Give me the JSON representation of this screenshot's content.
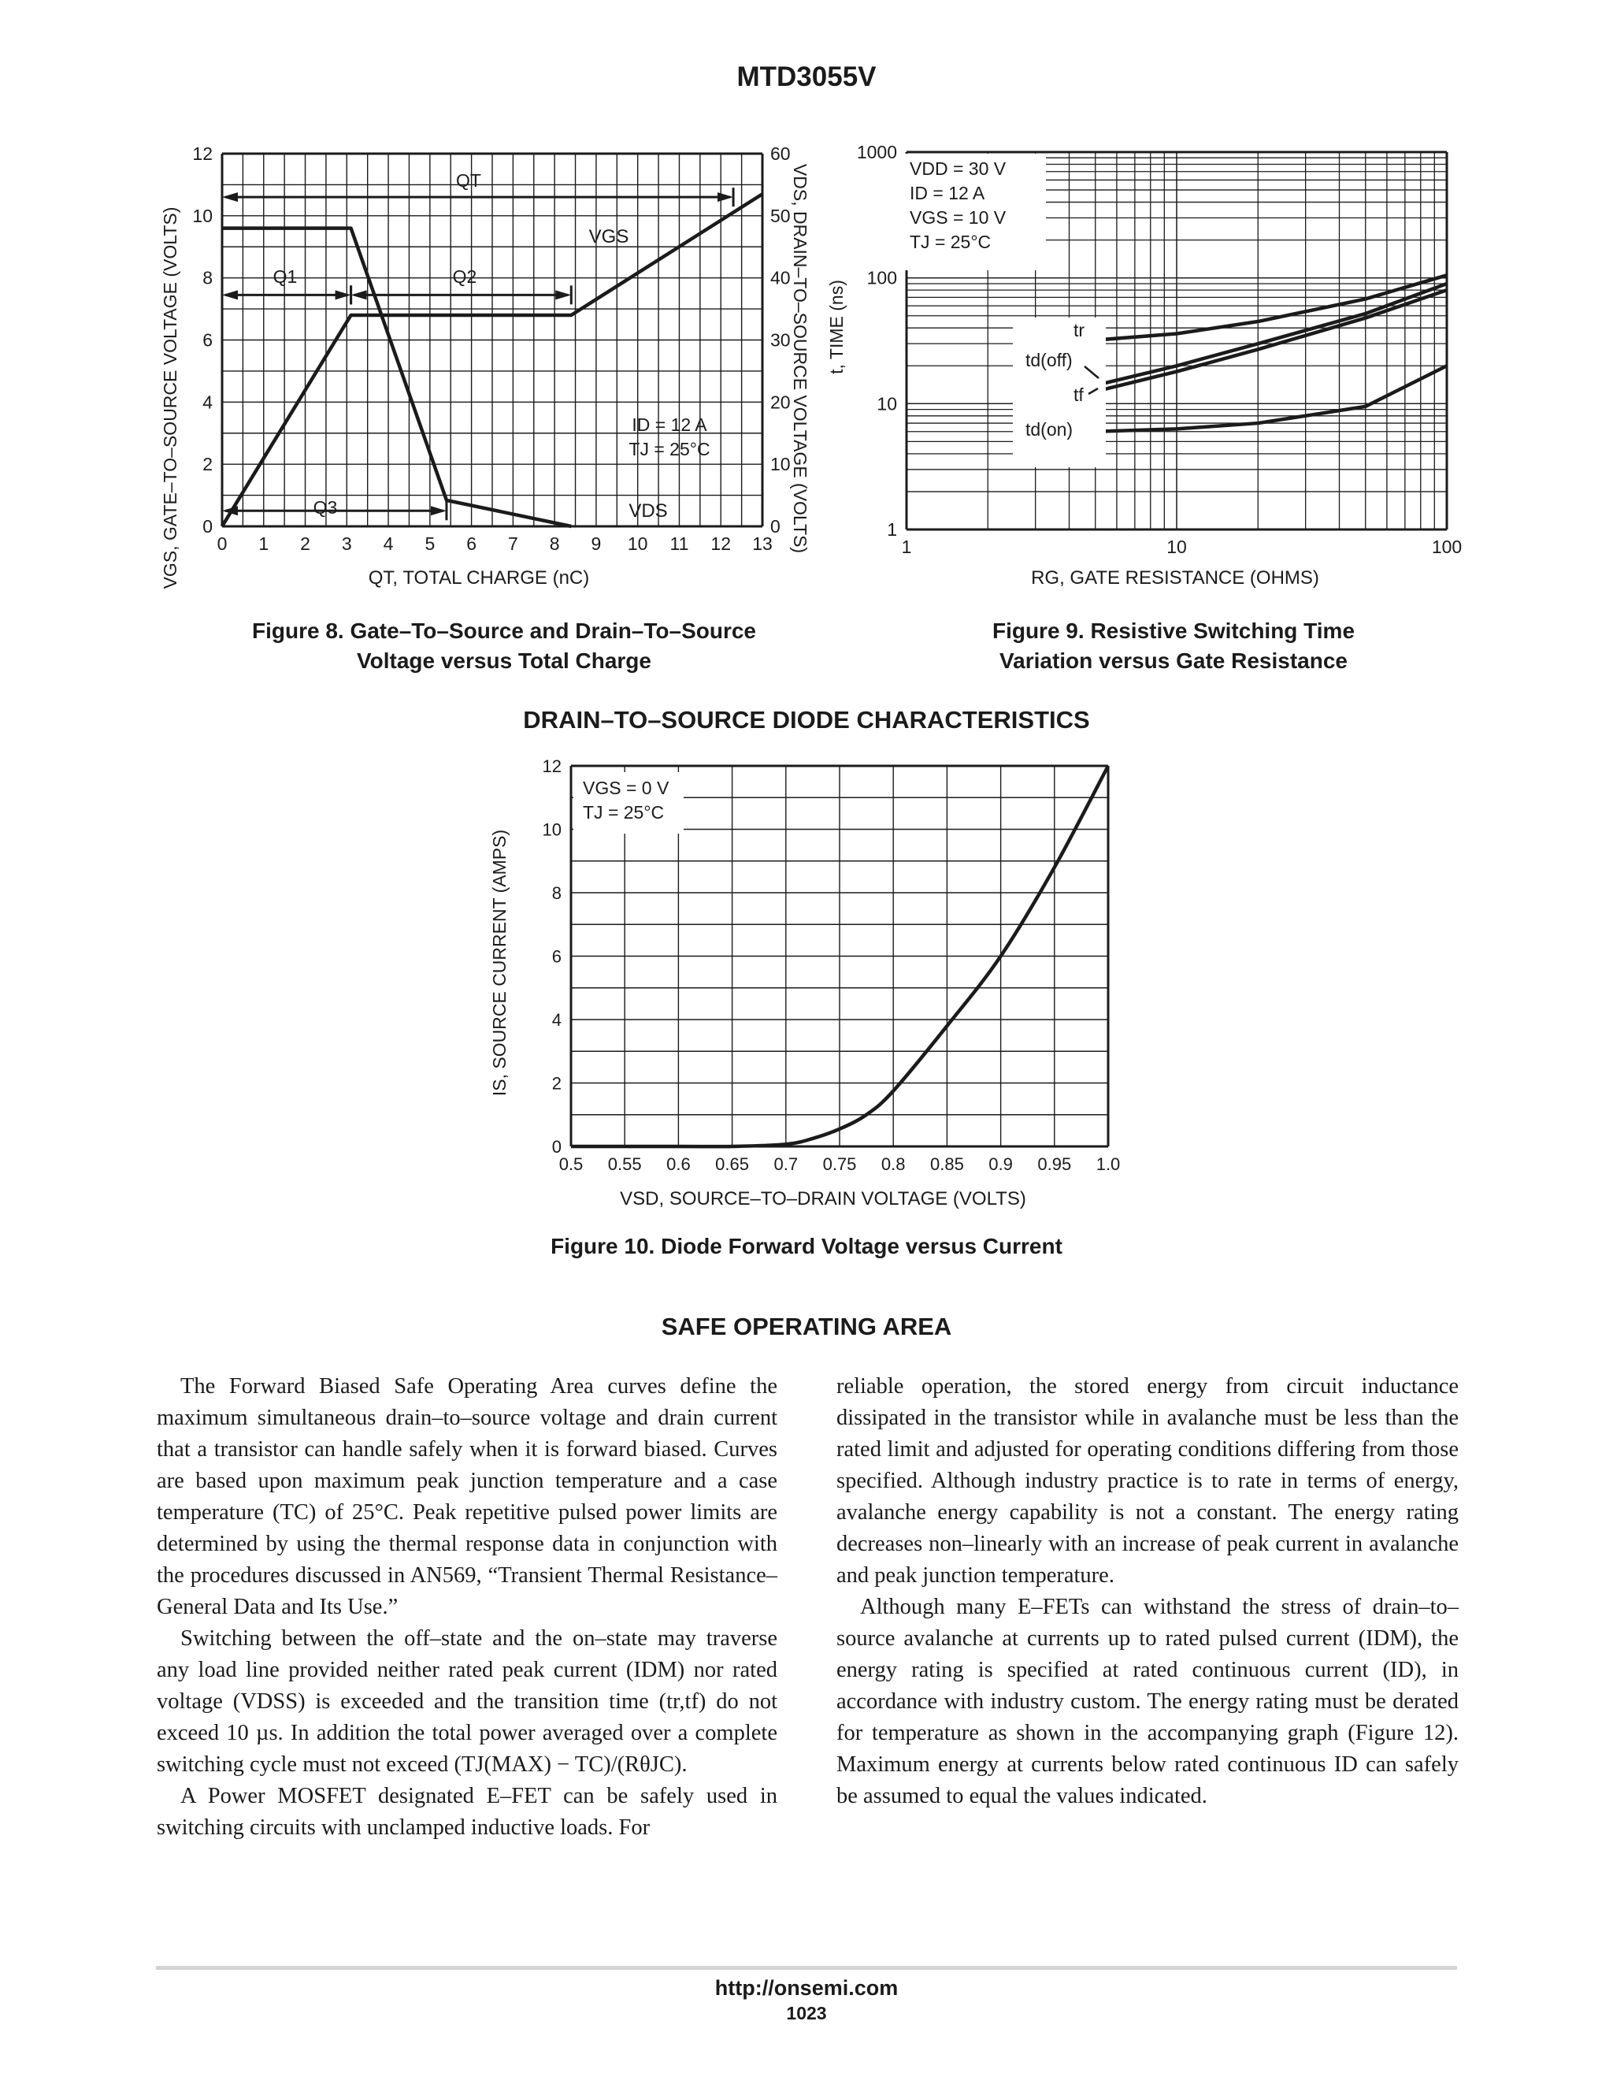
{
  "header": {
    "title": "MTD3055V"
  },
  "fig8": {
    "caption_line1": "Figure 8. Gate–To–Source and Drain–To–Source",
    "caption_line2": "Voltage versus Total Charge",
    "ylabel_left": "VGS, GATE–TO–SOURCE VOLTAGE (VOLTS)",
    "ylabel_right": "VDS, DRAIN–TO–SOURCE VOLTAGE (VOLTS)",
    "xlabel": "QT, TOTAL CHARGE (nC)",
    "x_ticks": [
      "0",
      "1",
      "2",
      "3",
      "4",
      "5",
      "6",
      "7",
      "8",
      "9",
      "10",
      "11",
      "12",
      "13"
    ],
    "yl_ticks": [
      "0",
      "2",
      "4",
      "6",
      "8",
      "10",
      "12"
    ],
    "yr_ticks": [
      "0",
      "10",
      "20",
      "30",
      "40",
      "50",
      "60"
    ],
    "labels": {
      "qt": "QT",
      "q1": "Q1",
      "q2": "Q2",
      "q3": "Q3",
      "vgs": "VGS",
      "vds": "VDS",
      "id": "ID = 12 A",
      "tj": "TJ = 25°C"
    }
  },
  "fig9": {
    "caption_line1": "Figure 9. Resistive Switching Time",
    "caption_line2": "Variation versus Gate Resistance",
    "ylabel": "t, TIME (ns)",
    "xlabel": "RG, GATE RESISTANCE (OHMS)",
    "x_ticks": [
      "1",
      "10",
      "100"
    ],
    "y_ticks": [
      "1",
      "10",
      "100",
      "1000"
    ],
    "conditions": [
      "VDD = 30 V",
      "ID = 12 A",
      "VGS = 10 V",
      "TJ = 25°C"
    ],
    "labels": {
      "tr": "tr",
      "tdoff": "td(off)",
      "tf": "tf",
      "tdon": "td(on)"
    }
  },
  "diode": {
    "section_title": "DRAIN–TO–SOURCE DIODE CHARACTERISTICS",
    "caption": "Figure 10. Diode Forward Voltage versus Current",
    "ylabel": "IS, SOURCE CURRENT (AMPS)",
    "xlabel": "VSD, SOURCE–TO–DRAIN VOLTAGE (VOLTS)",
    "x_ticks": [
      "0.5",
      "0.55",
      "0.6",
      "0.65",
      "0.7",
      "0.75",
      "0.8",
      "0.85",
      "0.9",
      "0.95",
      "1.0"
    ],
    "y_ticks": [
      "0",
      "2",
      "4",
      "6",
      "8",
      "10",
      "12"
    ],
    "conditions": [
      "VGS = 0 V",
      "TJ = 25°C"
    ]
  },
  "chart_data": [
    {
      "type": "line",
      "title": "Figure 8. Gate–To–Source and Drain–To–Source Voltage versus Total Charge",
      "xlabel": "QT, TOTAL CHARGE (nC)",
      "ylabel": "VGS, GATE–TO–SOURCE VOLTAGE (VOLTS)",
      "y2label": "VDS, DRAIN–TO–SOURCE VOLTAGE (VOLTS)",
      "xlim": [
        0,
        13
      ],
      "ylim": [
        0,
        12
      ],
      "y2lim": [
        0,
        60
      ],
      "grid": true,
      "series": [
        {
          "name": "VGS",
          "axis": "left",
          "x": [
            0,
            3.1,
            8.4,
            13
          ],
          "y": [
            0,
            6.8,
            6.8,
            10.7
          ]
        },
        {
          "name": "VDS",
          "axis": "right",
          "x": [
            0,
            3.1,
            5.4,
            8.4
          ],
          "y": [
            48,
            48,
            4.2,
            0
          ]
        }
      ],
      "annotations": [
        "QT",
        "Q1",
        "Q2",
        "Q3",
        "ID = 12 A",
        "TJ = 25°C"
      ]
    },
    {
      "type": "line",
      "title": "Figure 9. Resistive Switching Time Variation versus Gate Resistance",
      "xlabel": "RG, GATE RESISTANCE (OHMS)",
      "ylabel": "t, TIME (ns)",
      "xscale": "log",
      "yscale": "log",
      "xlim": [
        1,
        100
      ],
      "ylim": [
        1,
        1000
      ],
      "grid": true,
      "series": [
        {
          "name": "tr",
          "x": [
            5,
            10,
            20,
            50,
            100
          ],
          "y": [
            32,
            36,
            45,
            68,
            105
          ]
        },
        {
          "name": "td(off)",
          "x": [
            5,
            10,
            20,
            50,
            100
          ],
          "y": [
            14,
            20,
            30,
            52,
            90
          ]
        },
        {
          "name": "tf",
          "x": [
            5,
            10,
            20,
            50,
            100
          ],
          "y": [
            12.5,
            18,
            27,
            48,
            80
          ]
        },
        {
          "name": "td(on)",
          "x": [
            5,
            10,
            20,
            50,
            100
          ],
          "y": [
            6,
            6.3,
            7,
            9.5,
            20
          ]
        }
      ],
      "annotations": [
        "VDD = 30 V",
        "ID = 12 A",
        "VGS = 10 V",
        "TJ = 25°C"
      ]
    },
    {
      "type": "line",
      "title": "Figure 10. Diode Forward Voltage versus Current",
      "xlabel": "VSD, SOURCE–TO–DRAIN VOLTAGE (VOLTS)",
      "ylabel": "IS, SOURCE CURRENT (AMPS)",
      "xlim": [
        0.5,
        1.0
      ],
      "ylim": [
        0,
        12
      ],
      "grid": true,
      "series": [
        {
          "name": "IS",
          "x": [
            0.5,
            0.6,
            0.65,
            0.7,
            0.725,
            0.75,
            0.775,
            0.8,
            0.85,
            0.9,
            0.95,
            1.0
          ],
          "y": [
            0,
            0,
            0,
            0.07,
            0.25,
            0.55,
            1.0,
            1.75,
            3.8,
            6.0,
            8.8,
            12
          ]
        }
      ],
      "annotations": [
        "VGS = 0 V",
        "TJ = 25°C"
      ]
    }
  ],
  "soa": {
    "title": "SAFE OPERATING AREA",
    "left_paragraphs": [
      "The Forward Biased Safe Operating Area curves define the maximum simultaneous drain–to–source voltage and drain current that a transistor can handle safely when it is forward biased. Curves are based upon maximum peak junction temperature and a case temperature (TC) of 25°C. Peak repetitive pulsed power limits are determined by using the thermal response data in conjunction with the procedures discussed in AN569, “Transient Thermal Resistance–General Data and Its Use.”",
      "Switching between the off–state and the on–state may traverse any load line provided neither rated peak current (IDM) nor rated voltage (VDSS) is exceeded and the transition time (tr,tf) do not exceed 10 µs. In addition the total power averaged over a complete switching cycle must not exceed (TJ(MAX) − TC)/(RθJC).",
      "A Power MOSFET designated E–FET can be safely used in switching circuits with unclamped inductive loads. For"
    ],
    "right_paragraphs": [
      "reliable operation, the stored energy from circuit inductance dissipated in the transistor while in avalanche must be less than the rated limit and adjusted for operating conditions differing from those specified. Although industry practice is to rate in terms of energy, avalanche energy capability is not a constant. The energy rating decreases non–linearly with an increase of peak current in avalanche and peak junction temperature.",
      "Although many E–FETs can withstand the stress of drain–to–source avalanche at currents up to rated pulsed current (IDM), the energy rating is specified at rated continuous current (ID), in accordance with industry custom. The energy rating must be derated for temperature as shown in the accompanying graph (Figure 12). Maximum energy at currents below rated continuous ID can safely be assumed to equal the values indicated."
    ]
  },
  "footer": {
    "url": "http://onsemi.com",
    "page": "1023"
  }
}
